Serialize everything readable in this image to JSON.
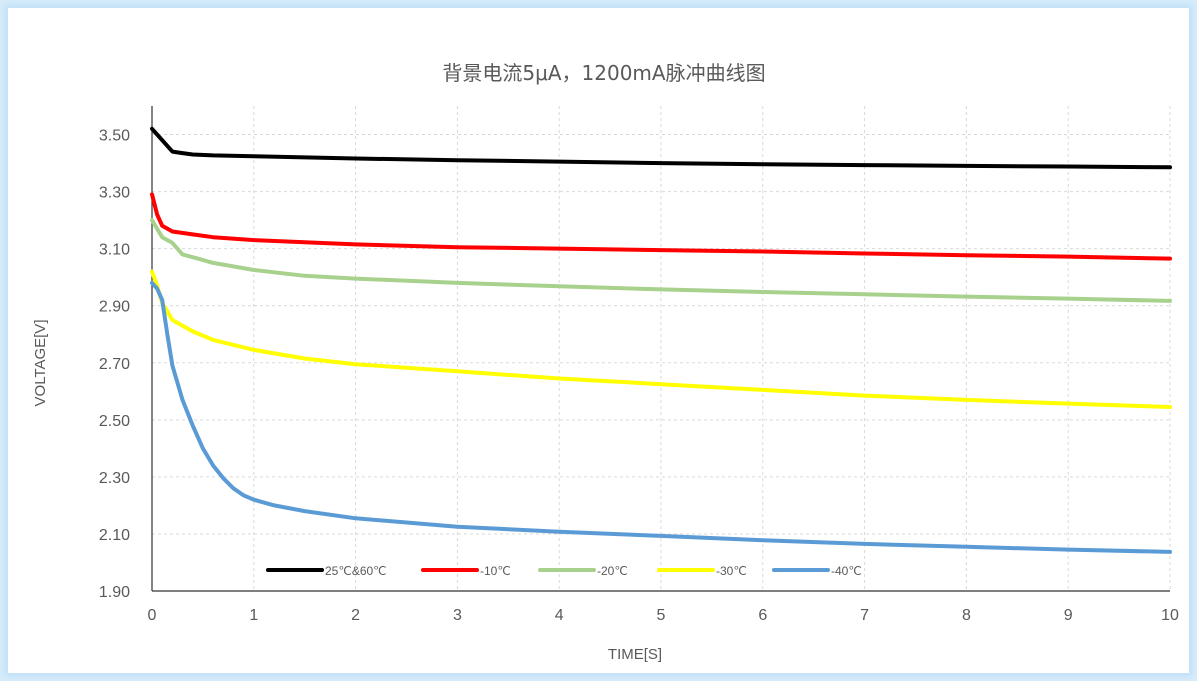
{
  "chart_data": {
    "type": "line",
    "title": "背景电流5μA，1200mA脉冲曲线图",
    "xlabel": "TIME[S]",
    "ylabel": "VOLTAGE[V]",
    "xlim": [
      0,
      10
    ],
    "ylim": [
      1.9,
      3.6
    ],
    "x_ticks": [
      "0",
      "1",
      "2",
      "3",
      "4",
      "5",
      "6",
      "7",
      "8",
      "9",
      "10"
    ],
    "y_ticks": [
      "1.90",
      "2.10",
      "2.30",
      "2.50",
      "2.70",
      "2.90",
      "3.10",
      "3.30",
      "3.50"
    ],
    "grid": true,
    "legend_position": "bottom-left inside plot",
    "series": [
      {
        "name": "25℃&60℃",
        "color": "#000000",
        "points": [
          [
            0,
            3.52
          ],
          [
            0.1,
            3.48
          ],
          [
            0.2,
            3.44
          ],
          [
            0.3,
            3.435
          ],
          [
            0.4,
            3.43
          ],
          [
            0.6,
            3.427
          ],
          [
            1,
            3.424
          ],
          [
            2,
            3.416
          ],
          [
            3,
            3.41
          ],
          [
            4,
            3.405
          ],
          [
            5,
            3.4
          ],
          [
            6,
            3.396
          ],
          [
            7,
            3.393
          ],
          [
            8,
            3.39
          ],
          [
            9,
            3.388
          ],
          [
            10,
            3.385
          ]
        ]
      },
      {
        "name": "-10℃",
        "color": "#ff0000",
        "points": [
          [
            0,
            3.29
          ],
          [
            0.05,
            3.22
          ],
          [
            0.1,
            3.18
          ],
          [
            0.2,
            3.16
          ],
          [
            0.4,
            3.15
          ],
          [
            0.6,
            3.14
          ],
          [
            1,
            3.13
          ],
          [
            2,
            3.115
          ],
          [
            3,
            3.105
          ],
          [
            4,
            3.1
          ],
          [
            5,
            3.095
          ],
          [
            6,
            3.09
          ],
          [
            7,
            3.083
          ],
          [
            8,
            3.077
          ],
          [
            9,
            3.072
          ],
          [
            10,
            3.065
          ]
        ]
      },
      {
        "name": "-20℃",
        "color": "#a9d18e",
        "points": [
          [
            0,
            3.2
          ],
          [
            0.05,
            3.17
          ],
          [
            0.1,
            3.14
          ],
          [
            0.2,
            3.12
          ],
          [
            0.3,
            3.08
          ],
          [
            0.45,
            3.065
          ],
          [
            0.6,
            3.05
          ],
          [
            1,
            3.025
          ],
          [
            1.5,
            3.005
          ],
          [
            2,
            2.995
          ],
          [
            3,
            2.98
          ],
          [
            4,
            2.968
          ],
          [
            5,
            2.957
          ],
          [
            6,
            2.948
          ],
          [
            7,
            2.94
          ],
          [
            8,
            2.932
          ],
          [
            9,
            2.925
          ],
          [
            10,
            2.917
          ]
        ]
      },
      {
        "name": "-30℃",
        "color": "#ffff00",
        "points": [
          [
            0,
            3.02
          ],
          [
            0.05,
            2.97
          ],
          [
            0.1,
            2.91
          ],
          [
            0.2,
            2.85
          ],
          [
            0.4,
            2.81
          ],
          [
            0.6,
            2.78
          ],
          [
            1,
            2.745
          ],
          [
            1.5,
            2.715
          ],
          [
            2,
            2.695
          ],
          [
            3,
            2.67
          ],
          [
            4,
            2.645
          ],
          [
            5,
            2.625
          ],
          [
            6,
            2.605
          ],
          [
            7,
            2.585
          ],
          [
            8,
            2.57
          ],
          [
            9,
            2.557
          ],
          [
            10,
            2.545
          ]
        ]
      },
      {
        "name": "-40℃",
        "color": "#5b9bd5",
        "points": [
          [
            0,
            2.98
          ],
          [
            0.05,
            2.96
          ],
          [
            0.1,
            2.92
          ],
          [
            0.15,
            2.8
          ],
          [
            0.2,
            2.69
          ],
          [
            0.3,
            2.57
          ],
          [
            0.4,
            2.48
          ],
          [
            0.5,
            2.4
          ],
          [
            0.6,
            2.34
          ],
          [
            0.7,
            2.295
          ],
          [
            0.8,
            2.26
          ],
          [
            0.9,
            2.235
          ],
          [
            1,
            2.22
          ],
          [
            1.2,
            2.2
          ],
          [
            1.5,
            2.18
          ],
          [
            2,
            2.155
          ],
          [
            2.5,
            2.14
          ],
          [
            3,
            2.125
          ],
          [
            4,
            2.108
          ],
          [
            5,
            2.093
          ],
          [
            6,
            2.078
          ],
          [
            7,
            2.065
          ],
          [
            8,
            2.055
          ],
          [
            9,
            2.045
          ],
          [
            10,
            2.037
          ]
        ]
      }
    ]
  }
}
